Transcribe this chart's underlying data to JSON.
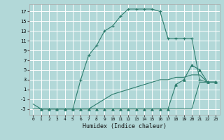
{
  "xlabel": "Humidex (Indice chaleur)",
  "background_color": "#b2d8d8",
  "grid_color": "#ffffff",
  "line_color": "#2e7d6e",
  "xlim": [
    -0.5,
    23.5
  ],
  "ylim": [
    -4.2,
    18.5
  ],
  "yticks": [
    -3,
    -1,
    1,
    3,
    5,
    7,
    9,
    11,
    13,
    15,
    17
  ],
  "xticks": [
    0,
    1,
    2,
    3,
    4,
    5,
    6,
    7,
    8,
    9,
    10,
    11,
    12,
    13,
    14,
    15,
    16,
    17,
    18,
    19,
    20,
    21,
    22,
    23
  ],
  "series": [
    {
      "x": [
        1,
        2,
        3,
        4,
        5,
        6,
        7,
        8,
        9,
        10,
        11,
        12,
        13,
        14,
        15,
        16,
        17,
        18,
        19,
        20,
        21,
        22,
        23
      ],
      "y": [
        -3,
        -3,
        -3,
        -3,
        -3,
        3,
        8,
        10,
        13,
        14,
        16,
        17.5,
        17.5,
        17.5,
        17.5,
        17,
        11.5,
        11.5,
        11.5,
        11.5,
        3,
        2.5,
        2.5
      ],
      "marker": "+",
      "markersize": 3.5
    },
    {
      "x": [
        0,
        1,
        2,
        3,
        4,
        5,
        6,
        7,
        8,
        9,
        10,
        11,
        12,
        13,
        14,
        15,
        16,
        17,
        18,
        19,
        20,
        21,
        22,
        23
      ],
      "y": [
        -2,
        -3,
        -3,
        -3,
        -3,
        -3,
        -3,
        -3,
        -2,
        -1,
        0,
        0.5,
        1,
        1.5,
        2,
        2.5,
        3,
        3,
        3.5,
        3.5,
        4,
        4,
        2.5,
        2.5
      ],
      "marker": null,
      "markersize": 0
    },
    {
      "x": [
        1,
        2,
        3,
        4,
        5,
        6,
        7,
        8,
        9,
        10,
        11,
        12,
        13,
        14,
        15,
        16,
        17,
        18,
        19,
        20,
        21,
        22,
        23
      ],
      "y": [
        -3,
        -3,
        -3,
        -3,
        -3,
        -3,
        -3,
        -3,
        -3,
        -3,
        -3,
        -3,
        -3,
        -3,
        -3,
        -3,
        -3,
        2,
        3,
        6,
        5,
        2.5,
        2.5
      ],
      "marker": "^",
      "markersize": 2.5
    },
    {
      "x": [
        0,
        1,
        2,
        3,
        4,
        5,
        6,
        7,
        8,
        9,
        10,
        11,
        12,
        13,
        14,
        15,
        16,
        17,
        18,
        19,
        20,
        21,
        22,
        23
      ],
      "y": [
        -3,
        -3,
        -3,
        -3,
        -3,
        -3,
        -3,
        -3,
        -3,
        -3,
        -3,
        -3,
        -3,
        -3,
        -3,
        -3,
        -3,
        -3,
        -3,
        -3,
        -3,
        2.5,
        2.5,
        2.5
      ],
      "marker": null,
      "markersize": 0
    }
  ]
}
